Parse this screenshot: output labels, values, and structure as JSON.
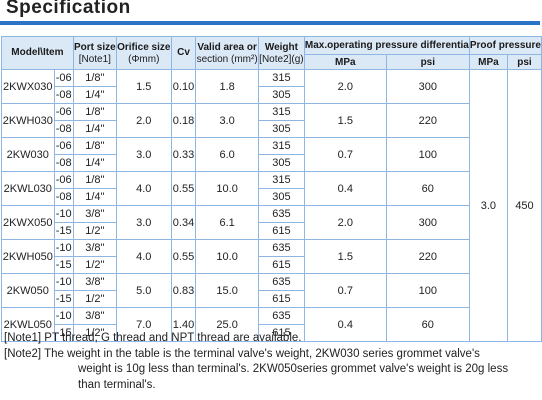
{
  "title": "Specification",
  "headers": {
    "model": "Model\\Item",
    "port_size": "Port size",
    "port_size_note": "[Note1]",
    "orifice_size": "Orifice size",
    "orifice_unit": "(Φmm)",
    "cv": "Cv",
    "valid_area": "Valid area or",
    "valid_area_unit": "section (mm²)",
    "weight": "Weight",
    "weight_note": "[Note2](g)",
    "max_pressure": "Max.operating pressure differentia",
    "proof_pressure": "Proof pressure",
    "mpa": "MPa",
    "psi": "psi",
    "proof_mpa": "MPa",
    "proof_psi": "psi"
  },
  "rows": [
    {
      "model": "2KWX030",
      "suffixes": [
        "-06",
        "-08"
      ],
      "ports": [
        "1/8\"",
        "1/4\""
      ],
      "orifice": "1.5",
      "cv": "0.10",
      "area": "1.8",
      "weights": [
        "315",
        "305"
      ],
      "mpa": "2.0",
      "psi": "300"
    },
    {
      "model": "2KWH030",
      "suffixes": [
        "-06",
        "-08"
      ],
      "ports": [
        "1/8\"",
        "1/4\""
      ],
      "orifice": "2.0",
      "cv": "0.18",
      "area": "3.0",
      "weights": [
        "315",
        "305"
      ],
      "mpa": "1.5",
      "psi": "220"
    },
    {
      "model": "2KW030",
      "suffixes": [
        "-06",
        "-08"
      ],
      "ports": [
        "1/8\"",
        "1/4\""
      ],
      "orifice": "3.0",
      "cv": "0.33",
      "area": "6.0",
      "weights": [
        "315",
        "305"
      ],
      "mpa": "0.7",
      "psi": "100"
    },
    {
      "model": "2KWL030",
      "suffixes": [
        "-06",
        "-08"
      ],
      "ports": [
        "1/8\"",
        "1/4\""
      ],
      "orifice": "4.0",
      "cv": "0.55",
      "area": "10.0",
      "weights": [
        "315",
        "305"
      ],
      "mpa": "0.4",
      "psi": "60"
    },
    {
      "model": "2KWX050",
      "suffixes": [
        "-10",
        "-15"
      ],
      "ports": [
        "3/8\"",
        "1/2\""
      ],
      "orifice": "3.0",
      "cv": "0.34",
      "area": "6.1",
      "weights": [
        "635",
        "615"
      ],
      "mpa": "2.0",
      "psi": "300"
    },
    {
      "model": "2KWH050",
      "suffixes": [
        "-10",
        "-15"
      ],
      "ports": [
        "3/8\"",
        "1/2\""
      ],
      "orifice": "4.0",
      "cv": "0.55",
      "area": "10.0",
      "weights": [
        "635",
        "615"
      ],
      "mpa": "1.5",
      "psi": "220"
    },
    {
      "model": "2KW050",
      "suffixes": [
        "-10",
        "-15"
      ],
      "ports": [
        "3/8\"",
        "1/2\""
      ],
      "orifice": "5.0",
      "cv": "0.83",
      "area": "15.0",
      "weights": [
        "635",
        "615"
      ],
      "mpa": "0.7",
      "psi": "100"
    },
    {
      "model": "2KWL050",
      "suffixes": [
        "-10",
        "-15"
      ],
      "ports": [
        "3/8\"",
        "1/2\""
      ],
      "orifice": "7.0",
      "cv": "1.40",
      "area": "25.0",
      "weights": [
        "635",
        "615"
      ],
      "mpa": "0.4",
      "psi": "60"
    }
  ],
  "proof": {
    "mpa": "3.0",
    "psi": "450"
  },
  "notes": {
    "note1": "[Note1] PT thread, G thread and NPT thread are available.",
    "note2_line1": "[Note2] The weight in the table is the terminal valve's weight, 2KW030 series grommet valve's",
    "note2_line2": "weight is 10g less than terminal's. 2KW050series grommet valve's weight is 20g less",
    "note2_line3": "than terminal's."
  }
}
